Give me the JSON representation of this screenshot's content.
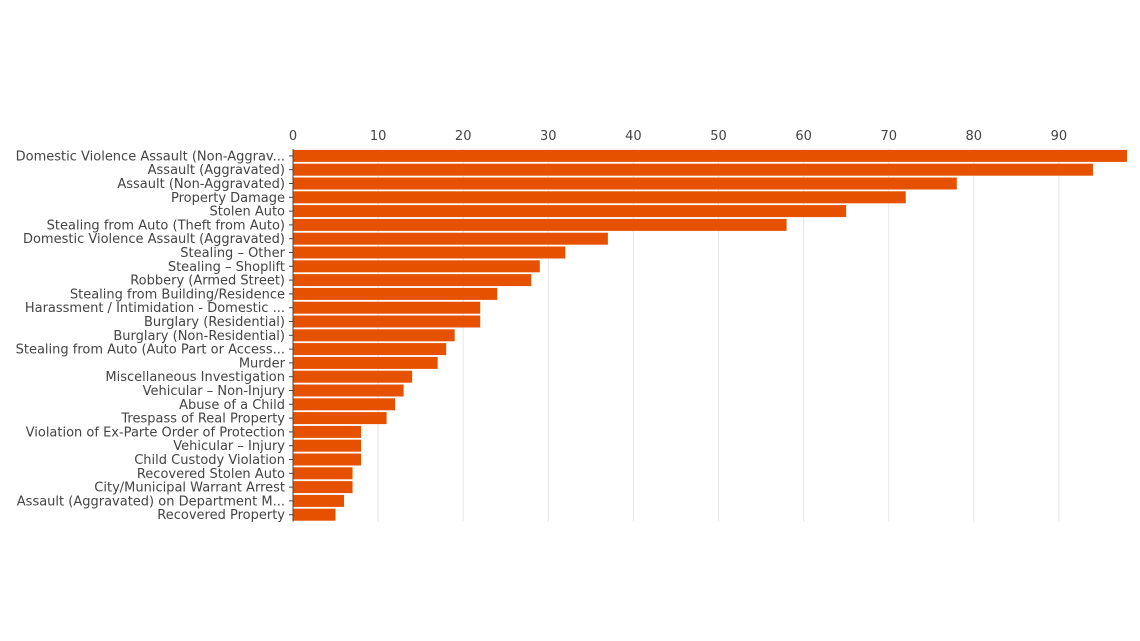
{
  "chart_data": {
    "type": "bar",
    "orientation": "horizontal",
    "title": "",
    "xlabel": "",
    "ylabel": "",
    "xlim": [
      0,
      98
    ],
    "x_ticks": [
      0,
      10,
      20,
      30,
      40,
      50,
      60,
      70,
      80,
      90
    ],
    "grid": true,
    "x_axis_position": "top",
    "bar_color": "#e65100",
    "categories": [
      "Domestic Violence Assault (Non-Aggrav...",
      "Assault (Aggravated)",
      "Assault (Non-Aggravated)",
      "Property Damage",
      "Stolen Auto",
      "Stealing from Auto (Theft from Auto)",
      "Domestic Violence Assault (Aggravated)",
      "Stealing – Other",
      "Stealing – Shoplift",
      "Robbery (Armed Street)",
      "Stealing from Building/Residence",
      "Harassment / Intimidation - Domestic ...",
      "Burglary (Residential)",
      "Burglary (Non-Residential)",
      "Stealing from Auto (Auto Part or Access...",
      "Murder",
      "Miscellaneous Investigation",
      "Vehicular – Non-Injury",
      "Abuse of a Child",
      "Trespass of Real Property",
      "Violation of Ex-Parte Order of Protection",
      "Vehicular – Injury",
      "Child Custody Violation",
      "Recovered Stolen Auto",
      "City/Municipal Warrant Arrest",
      "Assault (Aggravated) on Department M...",
      "Recovered Property"
    ],
    "values": [
      98,
      94,
      78,
      72,
      65,
      58,
      37,
      32,
      29,
      28,
      24,
      22,
      22,
      19,
      18,
      17,
      14,
      13,
      12,
      11,
      8,
      8,
      8,
      7,
      7,
      6,
      5
    ]
  }
}
